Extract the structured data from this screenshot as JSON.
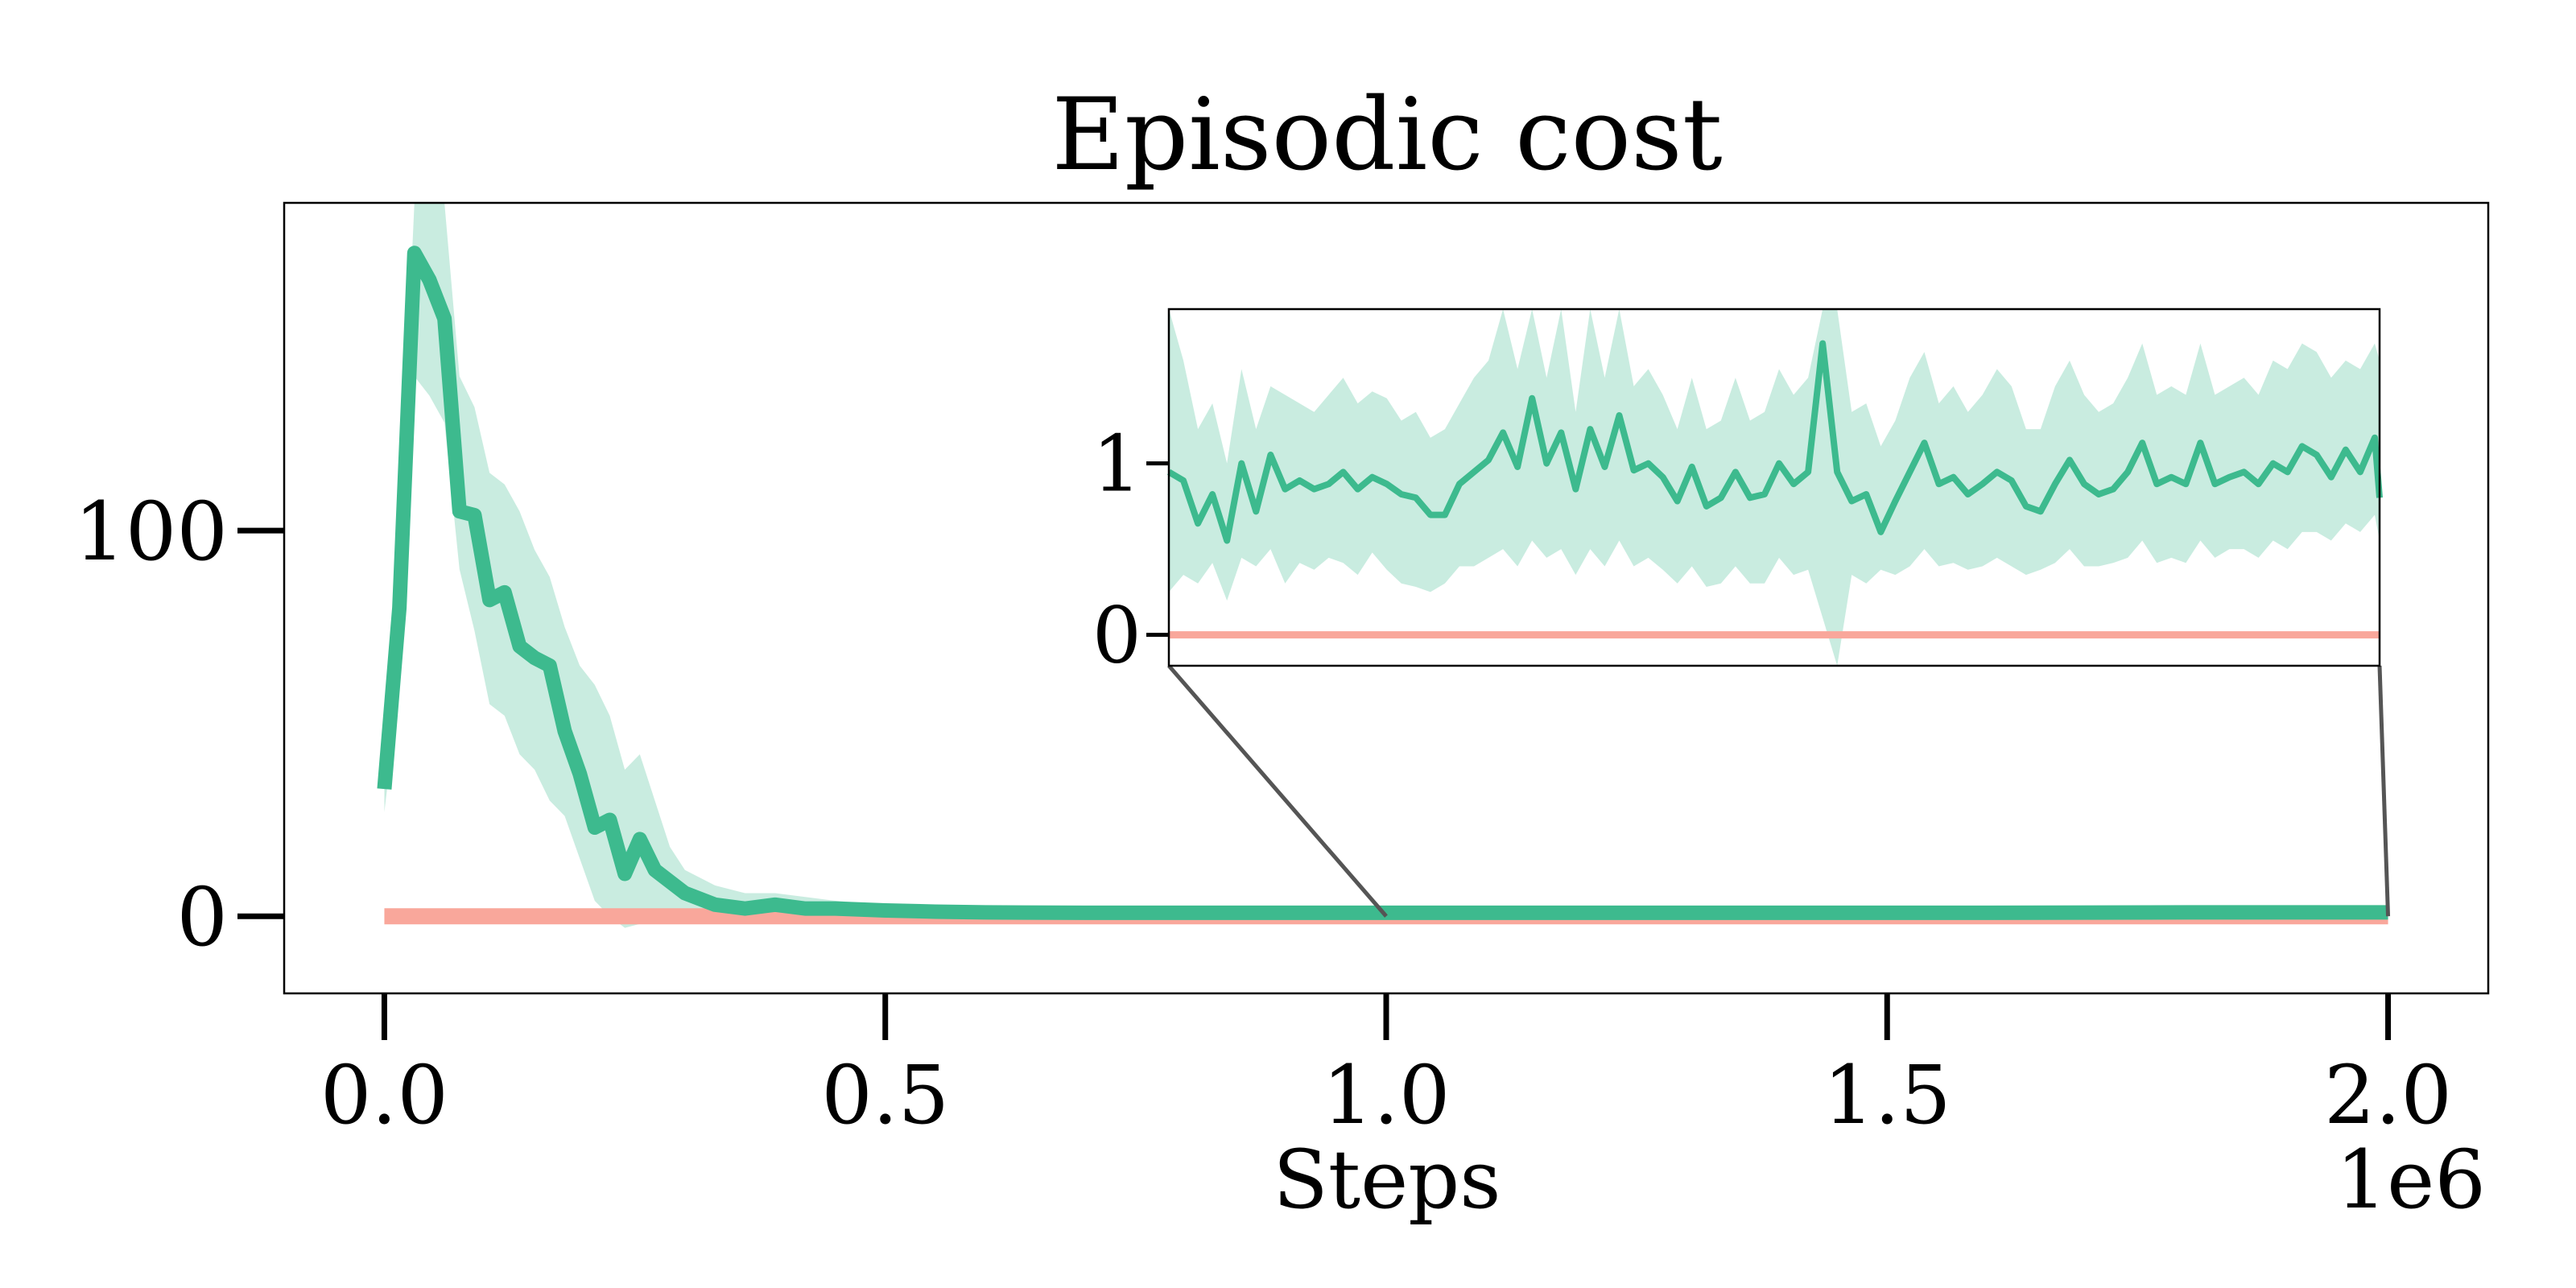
{
  "chart_data": {
    "type": "line",
    "title": "Episodic cost",
    "xlabel": "Steps",
    "x_offset_label": "1e6",
    "ylabel": "",
    "xlim": [
      -0.1,
      2.1
    ],
    "ylim": [
      -20,
      185
    ],
    "x_ticks": [
      0.0,
      0.5,
      1.0,
      1.5,
      2.0
    ],
    "x_tick_labels": [
      "0.0",
      "0.5",
      "1.0",
      "1.5",
      "2.0"
    ],
    "y_ticks": [
      0,
      100
    ],
    "y_tick_labels": [
      "0",
      "100"
    ],
    "grid": false,
    "legend": "none",
    "colors": {
      "series": "#3dba8e",
      "band": "#3dba8e",
      "threshold": "#f9a79b",
      "connector": "#555555"
    },
    "series": [
      {
        "x": [
          0.0,
          0.015,
          0.03,
          0.045,
          0.06,
          0.075,
          0.09,
          0.105,
          0.12,
          0.135,
          0.15,
          0.165,
          0.18,
          0.195,
          0.21,
          0.225,
          0.24,
          0.255,
          0.27,
          0.285,
          0.3,
          0.33,
          0.36,
          0.39,
          0.42,
          0.45,
          0.5,
          0.55,
          0.6,
          0.7,
          0.8,
          0.9,
          1.0,
          1.2,
          1.4,
          1.6,
          1.8,
          2.0
        ],
        "y": [
          33,
          80,
          172,
          165,
          155,
          105,
          104,
          82,
          84,
          70,
          67,
          65,
          48,
          37,
          23,
          25,
          11,
          20,
          12,
          9,
          6,
          3,
          2,
          3,
          2,
          2,
          1.5,
          1.2,
          1.0,
          0.9,
          0.9,
          0.9,
          0.9,
          0.9,
          0.9,
          0.9,
          1.0,
          1.0
        ],
        "lower": [
          27,
          60,
          140,
          135,
          128,
          90,
          74,
          55,
          52,
          42,
          38,
          30,
          26,
          15,
          4,
          0,
          -3,
          -2,
          -1,
          0,
          0,
          0,
          0,
          0.5,
          0.5,
          0.5,
          0.5,
          0.4,
          0.4,
          0.4,
          0.4,
          0.4,
          0.4,
          0.4,
          0.4,
          0.4,
          0.5,
          0.5
        ],
        "upper": [
          38,
          100,
          185,
          185,
          185,
          140,
          132,
          115,
          112,
          105,
          95,
          88,
          75,
          65,
          60,
          52,
          38,
          42,
          30,
          18,
          12,
          8,
          6,
          6,
          5,
          4,
          3,
          2,
          1.8,
          1.7,
          1.6,
          1.6,
          1.6,
          1.7,
          1.6,
          1.7,
          1.6,
          1.7
        ]
      },
      {
        "x": [
          0.0,
          2.0
        ],
        "y": [
          0,
          0
        ]
      }
    ],
    "inset": {
      "xlim": [
        1.0,
        2.0
      ],
      "ylim": [
        -0.18,
        1.9
      ],
      "y_ticks": [
        0,
        1
      ],
      "y_tick_labels": [
        "0",
        "1"
      ],
      "x": [
        1.0,
        1.012,
        1.024,
        1.036,
        1.048,
        1.06,
        1.072,
        1.084,
        1.096,
        1.108,
        1.12,
        1.132,
        1.144,
        1.156,
        1.168,
        1.18,
        1.192,
        1.204,
        1.216,
        1.228,
        1.24,
        1.252,
        1.264,
        1.276,
        1.288,
        1.3,
        1.312,
        1.324,
        1.336,
        1.348,
        1.36,
        1.372,
        1.384,
        1.396,
        1.408,
        1.42,
        1.432,
        1.444,
        1.456,
        1.468,
        1.48,
        1.492,
        1.504,
        1.516,
        1.528,
        1.54,
        1.552,
        1.564,
        1.576,
        1.588,
        1.6,
        1.612,
        1.624,
        1.636,
        1.648,
        1.66,
        1.672,
        1.684,
        1.696,
        1.708,
        1.72,
        1.732,
        1.744,
        1.756,
        1.768,
        1.78,
        1.792,
        1.804,
        1.816,
        1.828,
        1.84,
        1.852,
        1.864,
        1.876,
        1.888,
        1.9,
        1.912,
        1.924,
        1.936,
        1.948,
        1.96,
        1.972,
        1.984,
        1.996,
        2.0
      ],
      "y": [
        0.95,
        0.9,
        0.65,
        0.82,
        0.55,
        1.0,
        0.72,
        1.05,
        0.85,
        0.9,
        0.85,
        0.88,
        0.95,
        0.85,
        0.92,
        0.88,
        0.82,
        0.8,
        0.7,
        0.7,
        0.88,
        0.95,
        1.02,
        1.18,
        0.98,
        1.38,
        1.0,
        1.18,
        0.85,
        1.2,
        0.98,
        1.28,
        0.96,
        1.0,
        0.92,
        0.78,
        0.98,
        0.75,
        0.8,
        0.95,
        0.8,
        0.82,
        1.0,
        0.88,
        0.95,
        1.7,
        0.95,
        0.78,
        0.82,
        0.6,
        0.78,
        0.95,
        1.12,
        0.88,
        0.92,
        0.82,
        0.88,
        0.95,
        0.9,
        0.75,
        0.72,
        0.88,
        1.02,
        0.88,
        0.82,
        0.85,
        0.95,
        1.12,
        0.88,
        0.92,
        0.88,
        1.12,
        0.88,
        0.92,
        0.95,
        0.88,
        1.0,
        0.95,
        1.1,
        1.05,
        0.92,
        1.08,
        0.95,
        1.15,
        0.8
      ],
      "lower": [
        0.25,
        0.35,
        0.3,
        0.42,
        0.2,
        0.45,
        0.4,
        0.5,
        0.3,
        0.42,
        0.38,
        0.45,
        0.42,
        0.35,
        0.48,
        0.38,
        0.3,
        0.28,
        0.25,
        0.3,
        0.4,
        0.4,
        0.45,
        0.5,
        0.4,
        0.55,
        0.45,
        0.5,
        0.35,
        0.5,
        0.4,
        0.55,
        0.4,
        0.45,
        0.38,
        0.3,
        0.4,
        0.28,
        0.3,
        0.4,
        0.3,
        0.3,
        0.45,
        0.35,
        0.38,
        0.1,
        -0.18,
        0.35,
        0.3,
        0.38,
        0.35,
        0.4,
        0.5,
        0.4,
        0.42,
        0.38,
        0.4,
        0.45,
        0.4,
        0.35,
        0.38,
        0.42,
        0.5,
        0.4,
        0.4,
        0.42,
        0.45,
        0.55,
        0.42,
        0.45,
        0.42,
        0.55,
        0.45,
        0.5,
        0.5,
        0.45,
        0.55,
        0.5,
        0.6,
        0.6,
        0.55,
        0.65,
        0.6,
        0.7,
        0.55
      ],
      "upper": [
        1.9,
        1.6,
        1.2,
        1.35,
        1.0,
        1.55,
        1.2,
        1.45,
        1.4,
        1.35,
        1.3,
        1.4,
        1.5,
        1.35,
        1.42,
        1.38,
        1.25,
        1.3,
        1.15,
        1.2,
        1.35,
        1.5,
        1.6,
        1.9,
        1.55,
        1.9,
        1.5,
        1.9,
        1.3,
        1.9,
        1.5,
        1.9,
        1.45,
        1.55,
        1.4,
        1.2,
        1.5,
        1.2,
        1.25,
        1.5,
        1.25,
        1.3,
        1.55,
        1.4,
        1.5,
        1.9,
        1.9,
        1.3,
        1.35,
        1.1,
        1.25,
        1.5,
        1.65,
        1.35,
        1.45,
        1.3,
        1.4,
        1.55,
        1.45,
        1.2,
        1.2,
        1.45,
        1.6,
        1.4,
        1.3,
        1.35,
        1.5,
        1.7,
        1.4,
        1.45,
        1.4,
        1.7,
        1.4,
        1.45,
        1.5,
        1.4,
        1.6,
        1.55,
        1.7,
        1.65,
        1.5,
        1.6,
        1.55,
        1.7,
        1.6
      ]
    }
  }
}
